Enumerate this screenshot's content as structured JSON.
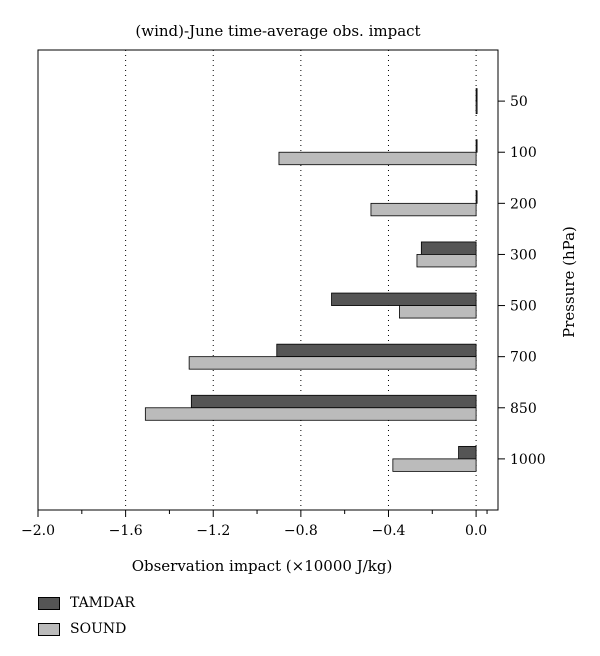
{
  "chart_data": {
    "type": "bar",
    "orientation": "horizontal",
    "title": "(wind)-June time-average obs. impact",
    "xlabel": "Observation impact (×10000 J/kg)",
    "ylabel": "Pressure (hPa)",
    "categories": [
      "50",
      "100",
      "200",
      "300",
      "500",
      "700",
      "850",
      "1000"
    ],
    "series": [
      {
        "name": "TAMDAR",
        "color": "#555555",
        "values": [
          0.0,
          0.0,
          0.0,
          -0.25,
          -0.66,
          -0.91,
          -1.3,
          -0.08
        ]
      },
      {
        "name": "SOUND",
        "color": "#bbbbbb",
        "values": [
          0.0,
          -0.9,
          -0.48,
          -0.27,
          -0.35,
          -1.31,
          -1.51,
          -0.38
        ]
      }
    ],
    "xlim": [
      -2.0,
      0.1
    ],
    "xticks": [
      -2.0,
      -1.6,
      -1.2,
      -0.8,
      -0.4,
      0.0
    ],
    "xtick_labels": [
      "−2.0",
      "−1.6",
      "−1.2",
      "−0.8",
      "−0.4",
      "0.0"
    ],
    "grid": "vertical dotted",
    "legend_position": "bottom-left"
  }
}
